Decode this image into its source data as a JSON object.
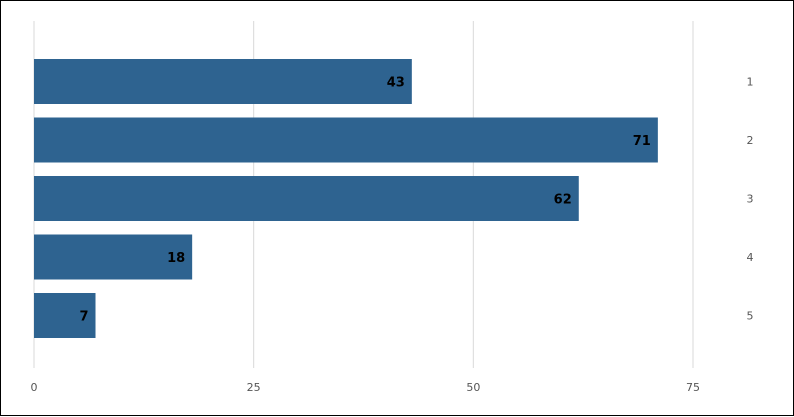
{
  "chart_data": {
    "type": "bar",
    "orientation": "horizontal",
    "categories": [
      "1",
      "2",
      "3",
      "4",
      "5"
    ],
    "values": [
      43,
      71,
      62,
      18,
      7
    ],
    "xticks": [
      0,
      25,
      50,
      75
    ],
    "xlim": [
      0,
      75
    ],
    "grid": true,
    "data_labels": true,
    "category_axis": "right",
    "colors": {
      "bar": "#2e6390",
      "grid": "#d9d9d9",
      "label": "#000000"
    },
    "title": "",
    "xlabel": "",
    "ylabel": ""
  }
}
